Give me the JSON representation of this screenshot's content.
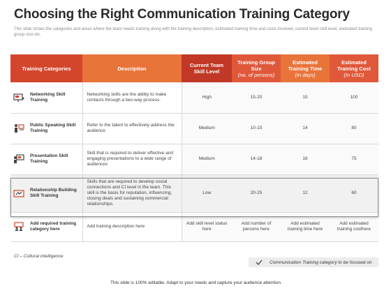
{
  "title": "Choosing the Right Communication Training Category",
  "subtitle": "This slide shows the categories and areas where the team needs training along with the training description, estimated training time and costs involved, current team skill level, estimated training group size etc.",
  "table": {
    "headers": {
      "category": "Training Categories",
      "description": "Description",
      "skill": "Current Team Skill Level",
      "group": "Training Group Size",
      "group_sub": "(no. of persons)",
      "time": "Estimated Training Time",
      "time_sub": "(In days)",
      "cost": "Estimated Training Cost",
      "cost_sub": "(In USD)"
    },
    "rows": [
      {
        "icon": "presenter-board-icon",
        "category": "Networking Skill Training",
        "description": "Networking skills are the ability to make contacts through a two-way process.",
        "skill": "High",
        "group": "15-20",
        "time": "15",
        "cost": "100"
      },
      {
        "icon": "public-speaking-icon",
        "category": "Public Speaking Skill Training",
        "description": "Refer to the talent to effectively address the audience",
        "skill": "Medium",
        "group": "10-15",
        "time": "14",
        "cost": "80"
      },
      {
        "icon": "presentation-icon",
        "category": "Presentation Skill Training",
        "description": "Skill that is required to deliver effective and engaging presentations to a wide range of audiences",
        "skill": "Medium",
        "group": "14-18",
        "time": "16",
        "cost": "75"
      },
      {
        "icon": "relationship-icon",
        "category": "Relationship Building Skill Training",
        "description": "Skills that are required to develop social connections and CI level in the team. This skill is the basis for reputation, influencing, closing deals and sustaining commercial relationships.",
        "skill": "Low",
        "group": "20-25",
        "time": "12",
        "cost": "60"
      },
      {
        "icon": "add-training-icon",
        "category": "Add required training category here",
        "description": "Add training description here",
        "skill": "Add skill level status here",
        "group": "Add number of persons here",
        "time": "Add estimated training time here",
        "cost": "Add estimated training costhere"
      }
    ]
  },
  "footnote": "CI – Cultural intelligence",
  "legend": "Communication Training category to be focused on",
  "bottom_note": "This slide is 100% editable. Adapt to your needs and capture your audience attention",
  "colors": {
    "accent_red": "#c13826",
    "accent_orange": "#e8743a"
  }
}
